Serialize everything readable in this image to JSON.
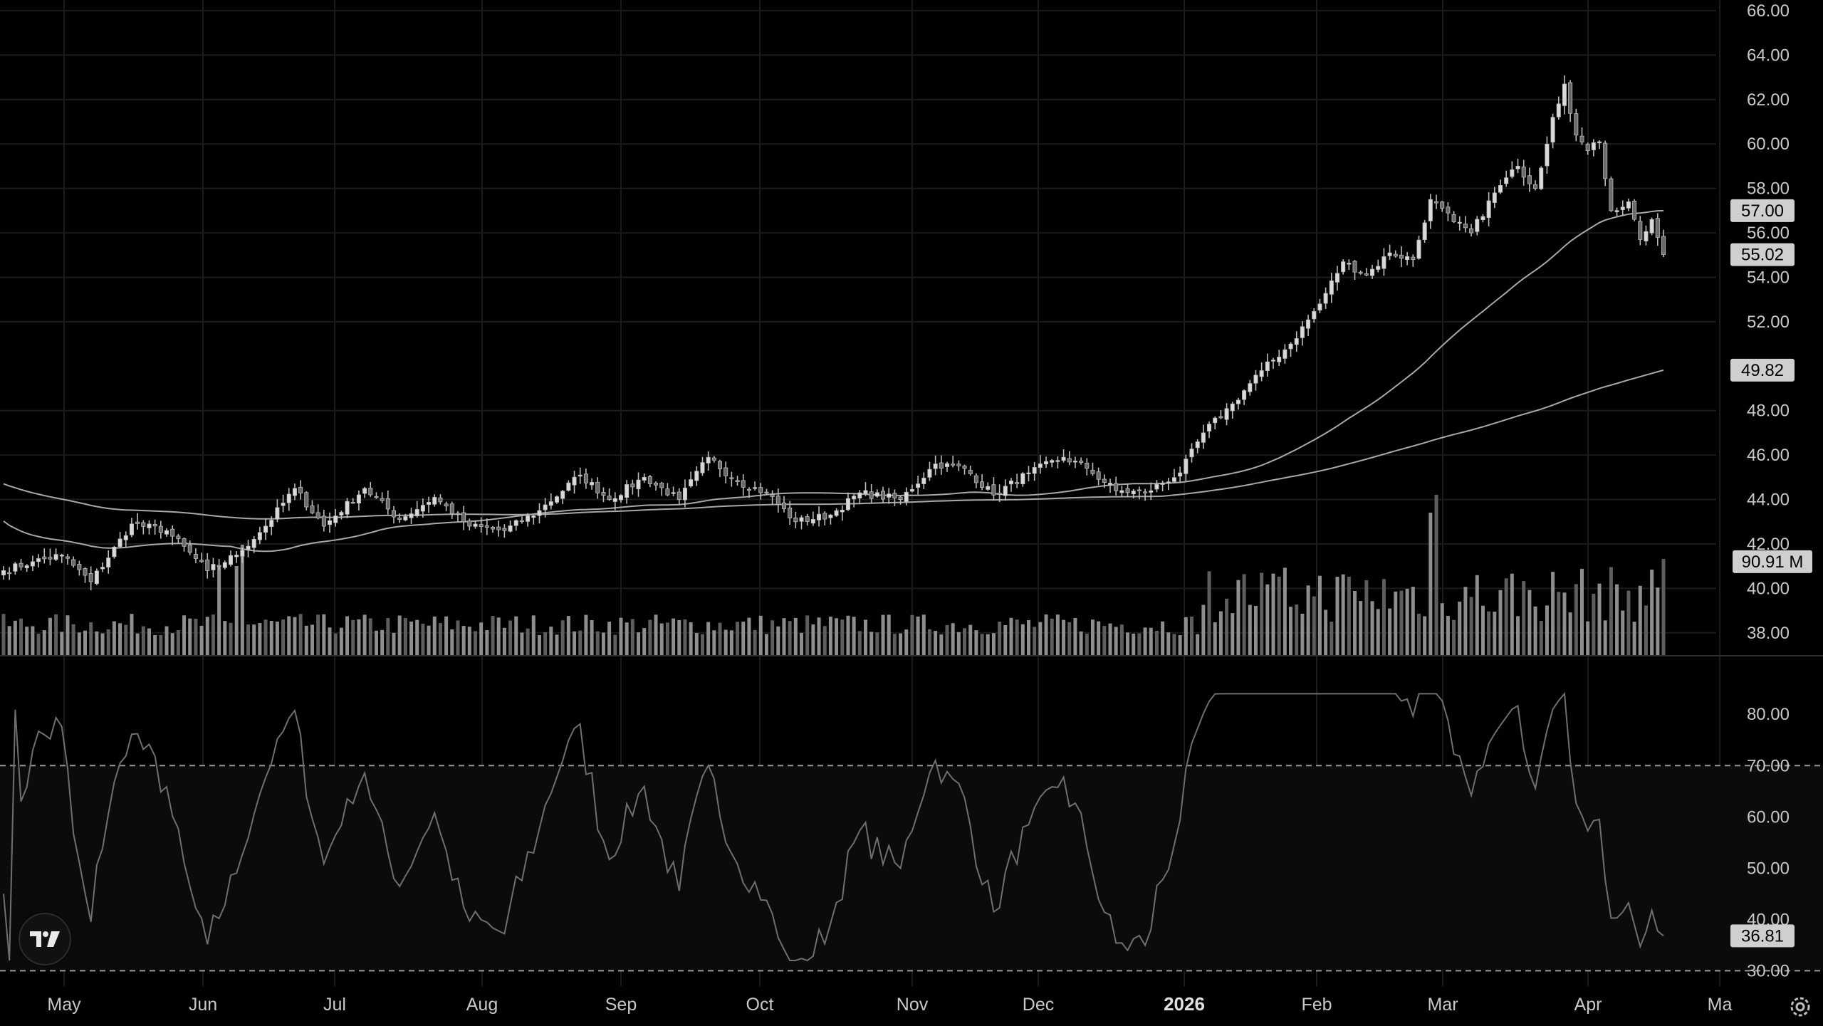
{
  "chart_data": {
    "type": "candlestick",
    "price_axis": {
      "ticks": [
        "66.00",
        "64.00",
        "62.00",
        "60.00",
        "58.00",
        "56.00",
        "54.00",
        "52.00",
        "48.00",
        "46.00",
        "44.00",
        "42.00",
        "40.00",
        "38.00"
      ],
      "range": [
        37,
        66
      ]
    },
    "price_badges": [
      {
        "value": "57.00",
        "price": 57.0
      },
      {
        "value": "55.02",
        "price": 55.02
      },
      {
        "value": "49.82",
        "price": 49.82
      },
      {
        "value": "90.91 M",
        "price": 41.2
      }
    ],
    "last_close": 55.02,
    "ma_fast_end": 57.0,
    "ma_slow_end": 49.82,
    "volume_last": "90.91 M",
    "rsi_axis": {
      "ticks": [
        "80.00",
        "70.00",
        "60.00",
        "50.00",
        "40.00",
        "30.00"
      ],
      "range": [
        27,
        86
      ],
      "upper_band": 70,
      "lower_band": 30
    },
    "rsi_last": "36.81",
    "x_axis": {
      "labels": [
        {
          "text": "May",
          "bold": false
        },
        {
          "text": "Jun",
          "bold": false
        },
        {
          "text": "Jul",
          "bold": false
        },
        {
          "text": "Aug",
          "bold": false
        },
        {
          "text": "Sep",
          "bold": false
        },
        {
          "text": "Oct",
          "bold": false
        },
        {
          "text": "Nov",
          "bold": false
        },
        {
          "text": "Dec",
          "bold": false
        },
        {
          "text": "2026",
          "bold": true
        },
        {
          "text": "Feb",
          "bold": false
        },
        {
          "text": "Mar",
          "bold": false
        },
        {
          "text": "Apr",
          "bold": false
        },
        {
          "text": "Ma",
          "bold": false
        }
      ]
    },
    "close_series": {
      "note_months": [
        "May",
        "Jun",
        "Jul",
        "Aug",
        "Sep",
        "Oct",
        "Nov",
        "Dec",
        "Jan",
        "Feb",
        "Mar",
        "Apr"
      ],
      "anchors": [
        {
          "t": 0,
          "v": 40.8
        },
        {
          "t": 5,
          "v": 41.2
        },
        {
          "t": 10,
          "v": 41.5
        },
        {
          "t": 15,
          "v": 40.3
        },
        {
          "t": 22,
          "v": 42.9
        },
        {
          "t": 28,
          "v": 42.6
        },
        {
          "t": 35,
          "v": 40.8
        },
        {
          "t": 40,
          "v": 41.5
        },
        {
          "t": 45,
          "v": 42.8
        },
        {
          "t": 50,
          "v": 44.5
        },
        {
          "t": 55,
          "v": 42.8
        },
        {
          "t": 62,
          "v": 44.5
        },
        {
          "t": 68,
          "v": 43.1
        },
        {
          "t": 74,
          "v": 44.1
        },
        {
          "t": 80,
          "v": 42.8
        },
        {
          "t": 86,
          "v": 42.6
        },
        {
          "t": 92,
          "v": 43.5
        },
        {
          "t": 99,
          "v": 45.1
        },
        {
          "t": 104,
          "v": 44.0
        },
        {
          "t": 110,
          "v": 45.0
        },
        {
          "t": 116,
          "v": 44.0
        },
        {
          "t": 121,
          "v": 45.9
        },
        {
          "t": 126,
          "v": 44.8
        },
        {
          "t": 131,
          "v": 44.3
        },
        {
          "t": 136,
          "v": 43.0
        },
        {
          "t": 142,
          "v": 43.3
        },
        {
          "t": 147,
          "v": 44.3
        },
        {
          "t": 154,
          "v": 44.0
        },
        {
          "t": 160,
          "v": 45.6
        },
        {
          "t": 165,
          "v": 45.4
        },
        {
          "t": 170,
          "v": 44.2
        },
        {
          "t": 176,
          "v": 45.2
        },
        {
          "t": 182,
          "v": 45.9
        },
        {
          "t": 186,
          "v": 45.4
        },
        {
          "t": 191,
          "v": 44.4
        },
        {
          "t": 196,
          "v": 44.3
        },
        {
          "t": 202,
          "v": 45.2
        },
        {
          "t": 206,
          "v": 47.0
        },
        {
          "t": 211,
          "v": 48.3
        },
        {
          "t": 216,
          "v": 49.8
        },
        {
          "t": 221,
          "v": 51.0
        },
        {
          "t": 226,
          "v": 52.8
        },
        {
          "t": 230,
          "v": 54.7
        },
        {
          "t": 234,
          "v": 54.1
        },
        {
          "t": 238,
          "v": 55.1
        },
        {
          "t": 242,
          "v": 54.8
        },
        {
          "t": 245,
          "v": 57.5
        },
        {
          "t": 249,
          "v": 56.5
        },
        {
          "t": 252,
          "v": 56.0
        },
        {
          "t": 256,
          "v": 57.8
        },
        {
          "t": 260,
          "v": 59.0
        },
        {
          "t": 263,
          "v": 58.0
        },
        {
          "t": 266,
          "v": 61.2
        },
        {
          "t": 268,
          "v": 62.7
        },
        {
          "t": 270,
          "v": 60.4
        },
        {
          "t": 272,
          "v": 59.7
        },
        {
          "t": 274,
          "v": 60.1
        },
        {
          "t": 276,
          "v": 57.0
        },
        {
          "t": 279,
          "v": 57.4
        },
        {
          "t": 281,
          "v": 55.7
        },
        {
          "t": 283,
          "v": 56.6
        },
        {
          "t": 285,
          "v": 55.02
        }
      ]
    }
  }
}
